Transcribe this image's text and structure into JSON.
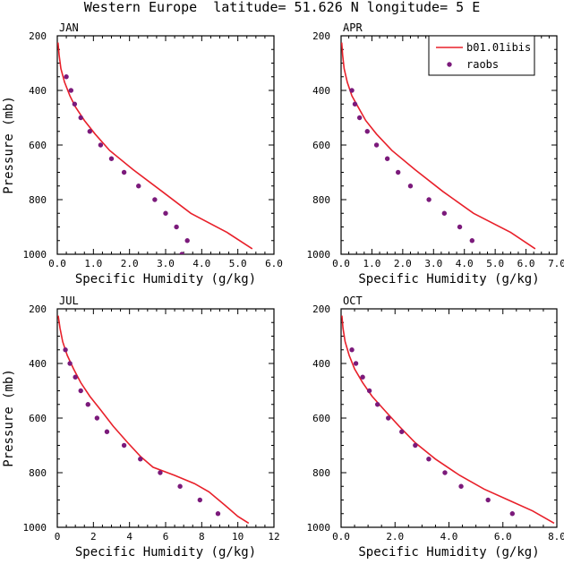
{
  "page_title": "Western Europe  latitude= 51.626 N longitude= 5 E",
  "legend": {
    "position": "top-right",
    "model_label": "b01.01ibis",
    "obs_label": "raobs"
  },
  "colors": {
    "model_line": "#e8202a",
    "obs_marker": "#7b1a7b",
    "axes": "#000000"
  },
  "chart_data": [
    {
      "type": "line",
      "panel_label": "JAN",
      "xlabel": "Specific Humidity (g/kg)",
      "ylabel": "Pressure (mb)",
      "xlim": [
        0,
        6
      ],
      "ylim": [
        1000,
        200
      ],
      "y_inverted": true,
      "x_ticks": [
        0,
        1,
        2,
        3,
        4,
        5,
        6
      ],
      "x_tick_labels": [
        "0.0",
        "1.0",
        "2.0",
        "3.0",
        "4.0",
        "5.0",
        "6.0"
      ],
      "y_ticks": [
        200,
        400,
        600,
        800,
        1000
      ],
      "y_tick_labels": [
        "200",
        "400",
        "600",
        "800",
        "1000"
      ],
      "series": [
        {
          "name": "b01.01ibis",
          "kind": "line",
          "x": [
            0.02,
            0.05,
            0.1,
            0.2,
            0.35,
            0.5,
            0.75,
            1.05,
            1.45,
            2.1,
            2.9,
            3.7,
            4.7,
            5.4
          ],
          "y": [
            225,
            270,
            320,
            370,
            420,
            460,
            510,
            560,
            620,
            690,
            770,
            850,
            920,
            980
          ]
        },
        {
          "name": "raobs",
          "kind": "scatter",
          "x": [
            0.25,
            0.38,
            0.48,
            0.65,
            0.9,
            1.2,
            1.5,
            1.85,
            2.25,
            2.7,
            3.0,
            3.3,
            3.6,
            3.45
          ],
          "y": [
            350,
            400,
            450,
            500,
            550,
            600,
            650,
            700,
            750,
            800,
            850,
            900,
            950,
            1000
          ]
        }
      ]
    },
    {
      "type": "line",
      "panel_label": "APR",
      "xlabel": "Specific Humidity (g/kg)",
      "ylabel": "",
      "xlim": [
        0,
        7
      ],
      "ylim": [
        1000,
        200
      ],
      "y_inverted": true,
      "x_ticks": [
        0,
        1,
        2,
        3,
        4,
        5,
        6,
        7
      ],
      "x_tick_labels": [
        "0.0",
        "1.0",
        "2.0",
        "3.0",
        "4.0",
        "5.0",
        "6.0",
        "7.0"
      ],
      "y_ticks": [
        200,
        400,
        600,
        800,
        1000
      ],
      "y_tick_labels": [
        "200",
        "400",
        "600",
        "800",
        "1000"
      ],
      "series": [
        {
          "name": "b01.01ibis",
          "kind": "line",
          "x": [
            0.02,
            0.05,
            0.1,
            0.2,
            0.35,
            0.55,
            0.8,
            1.15,
            1.65,
            2.4,
            3.3,
            4.3,
            5.5,
            6.3
          ],
          "y": [
            225,
            270,
            320,
            370,
            420,
            460,
            510,
            560,
            620,
            690,
            770,
            850,
            920,
            980
          ]
        },
        {
          "name": "raobs",
          "kind": "scatter",
          "x": [
            0.35,
            0.45,
            0.6,
            0.85,
            1.15,
            1.5,
            1.85,
            2.25,
            2.85,
            3.35,
            3.85,
            4.25
          ],
          "y": [
            400,
            450,
            500,
            550,
            600,
            650,
            700,
            750,
            800,
            850,
            900,
            950
          ]
        }
      ]
    },
    {
      "type": "line",
      "panel_label": "JUL",
      "xlabel": "Specific Humidity (g/kg)",
      "ylabel": "Pressure (mb)",
      "xlim": [
        0,
        12
      ],
      "ylim": [
        1000,
        200
      ],
      "y_inverted": true,
      "x_ticks": [
        0,
        2,
        4,
        6,
        8,
        10,
        12
      ],
      "x_tick_labels": [
        "0",
        "2",
        "4",
        "6",
        "8",
        "10",
        "12"
      ],
      "y_ticks": [
        200,
        400,
        600,
        800,
        1000
      ],
      "y_tick_labels": [
        "200",
        "400",
        "600",
        "800",
        "1000"
      ],
      "series": [
        {
          "name": "b01.01ibis",
          "kind": "line",
          "x": [
            0.05,
            0.15,
            0.3,
            0.55,
            0.9,
            1.3,
            1.8,
            2.4,
            3.1,
            3.9,
            4.6,
            5.3,
            6.5,
            7.6,
            8.4,
            9.3,
            10.0,
            10.6
          ],
          "y": [
            225,
            270,
            320,
            370,
            420,
            470,
            520,
            570,
            630,
            690,
            740,
            780,
            810,
            840,
            870,
            920,
            960,
            985
          ]
        },
        {
          "name": "raobs",
          "kind": "scatter",
          "x": [
            0.45,
            0.7,
            1.0,
            1.3,
            1.7,
            2.2,
            2.75,
            3.7,
            4.6,
            5.7,
            6.8,
            7.9,
            8.9
          ],
          "y": [
            350,
            400,
            450,
            500,
            550,
            600,
            650,
            700,
            750,
            800,
            850,
            900,
            950
          ]
        }
      ]
    },
    {
      "type": "line",
      "panel_label": "OCT",
      "xlabel": "Specific Humidity (g/kg)",
      "ylabel": "",
      "xlim": [
        0,
        8
      ],
      "ylim": [
        1000,
        200
      ],
      "y_inverted": true,
      "x_ticks": [
        0,
        2,
        4,
        6,
        8
      ],
      "x_tick_labels": [
        "0.0",
        "2.0",
        "4.0",
        "6.0",
        "8.0"
      ],
      "y_ticks": [
        200,
        400,
        600,
        800,
        1000
      ],
      "y_tick_labels": [
        "200",
        "400",
        "600",
        "800",
        "1000"
      ],
      "series": [
        {
          "name": "b01.01ibis",
          "kind": "line",
          "x": [
            0.03,
            0.07,
            0.15,
            0.3,
            0.5,
            0.8,
            1.15,
            1.6,
            2.15,
            2.75,
            3.5,
            4.4,
            5.3,
            6.2,
            7.1,
            7.9
          ],
          "y": [
            225,
            270,
            320,
            370,
            420,
            470,
            520,
            570,
            630,
            690,
            750,
            810,
            860,
            900,
            940,
            985
          ]
        },
        {
          "name": "raobs",
          "kind": "scatter",
          "x": [
            0.4,
            0.55,
            0.8,
            1.05,
            1.35,
            1.75,
            2.25,
            2.75,
            3.25,
            3.85,
            4.45,
            5.45,
            6.35
          ],
          "y": [
            350,
            400,
            450,
            500,
            550,
            600,
            650,
            700,
            750,
            800,
            850,
            900,
            950
          ]
        }
      ]
    }
  ]
}
